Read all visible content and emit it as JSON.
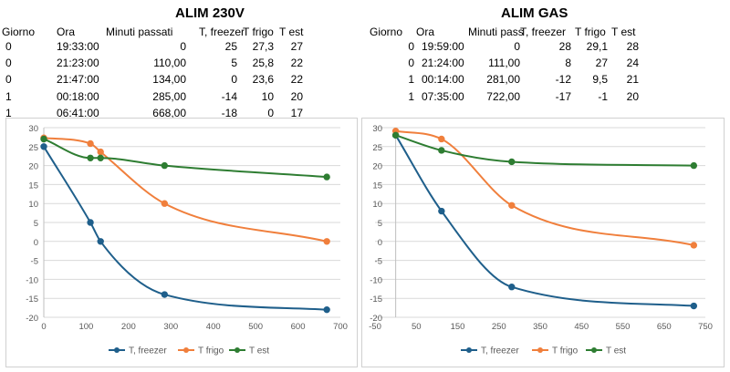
{
  "tables": [
    {
      "title": "ALIM 230V",
      "headers": [
        "Giorno",
        "Ora",
        "Minuti passati",
        "T, freezer",
        "T frigo",
        "T est"
      ],
      "rows": [
        [
          "0",
          "19:33:00",
          "0",
          "25",
          "27,3",
          "27"
        ],
        [
          "0",
          "21:23:00",
          "110,00",
          "5",
          "25,8",
          "22"
        ],
        [
          "0",
          "21:47:00",
          "134,00",
          "0",
          "23,6",
          "22"
        ],
        [
          "1",
          "00:18:00",
          "285,00",
          "-14",
          "10",
          "20"
        ],
        [
          "1",
          "06:41:00",
          "668,00",
          "-18",
          "0",
          "17"
        ]
      ]
    },
    {
      "title": "ALIM GAS",
      "headers": [
        "Giorno",
        "Ora",
        "Minuti pass",
        "T, freezer",
        "T frigo",
        "T est"
      ],
      "rows": [
        [
          "0",
          "19:59:00",
          "0",
          "28",
          "29,1",
          "28"
        ],
        [
          "0",
          "21:24:00",
          "111,00",
          "8",
          "27",
          "24"
        ],
        [
          "1",
          "00:14:00",
          "281,00",
          "-12",
          "9,5",
          "21"
        ],
        [
          "1",
          "07:35:00",
          "722,00",
          "-17",
          "-1",
          "20"
        ]
      ]
    }
  ],
  "chart_data": [
    {
      "type": "scatter",
      "title": "",
      "xlabel": "",
      "ylabel": "",
      "xlim": [
        0,
        700
      ],
      "ylim": [
        -20,
        30
      ],
      "xticks": [
        0,
        100,
        200,
        300,
        400,
        500,
        600,
        700
      ],
      "yticks": [
        -20,
        -15,
        -10,
        -5,
        0,
        5,
        10,
        15,
        20,
        25,
        30
      ],
      "grid": "horizontal",
      "legend": "bottom",
      "series": [
        {
          "name": "T, freezer",
          "color": "#1f5f8b",
          "x": [
            0,
            110,
            134,
            285,
            668
          ],
          "y": [
            25,
            5,
            0,
            -14,
            -18
          ]
        },
        {
          "name": "T frigo",
          "color": "#f07f3c",
          "x": [
            0,
            110,
            134,
            285,
            668
          ],
          "y": [
            27.3,
            25.8,
            23.6,
            10,
            0
          ]
        },
        {
          "name": "T est",
          "color": "#2e7d32",
          "x": [
            0,
            110,
            134,
            285,
            668
          ],
          "y": [
            27,
            22,
            22,
            20,
            17
          ]
        }
      ]
    },
    {
      "type": "scatter",
      "title": "",
      "xlabel": "",
      "ylabel": "",
      "xlim": [
        -50,
        750
      ],
      "ylim": [
        -20,
        30
      ],
      "xticks": [
        -50,
        50,
        150,
        250,
        350,
        450,
        550,
        650,
        750
      ],
      "yticks": [
        -20,
        -15,
        -10,
        -5,
        0,
        5,
        10,
        15,
        20,
        25,
        30
      ],
      "grid": "horizontal",
      "legend": "bottom",
      "series": [
        {
          "name": "T, freezer",
          "color": "#1f5f8b",
          "x": [
            0,
            111,
            281,
            722
          ],
          "y": [
            28,
            8,
            -12,
            -17
          ]
        },
        {
          "name": "T frigo",
          "color": "#f07f3c",
          "x": [
            0,
            111,
            281,
            722
          ],
          "y": [
            29.1,
            27,
            9.5,
            -1
          ]
        },
        {
          "name": "T est",
          "color": "#2e7d32",
          "x": [
            0,
            111,
            281,
            722
          ],
          "y": [
            28,
            24,
            21,
            20
          ]
        }
      ]
    }
  ]
}
